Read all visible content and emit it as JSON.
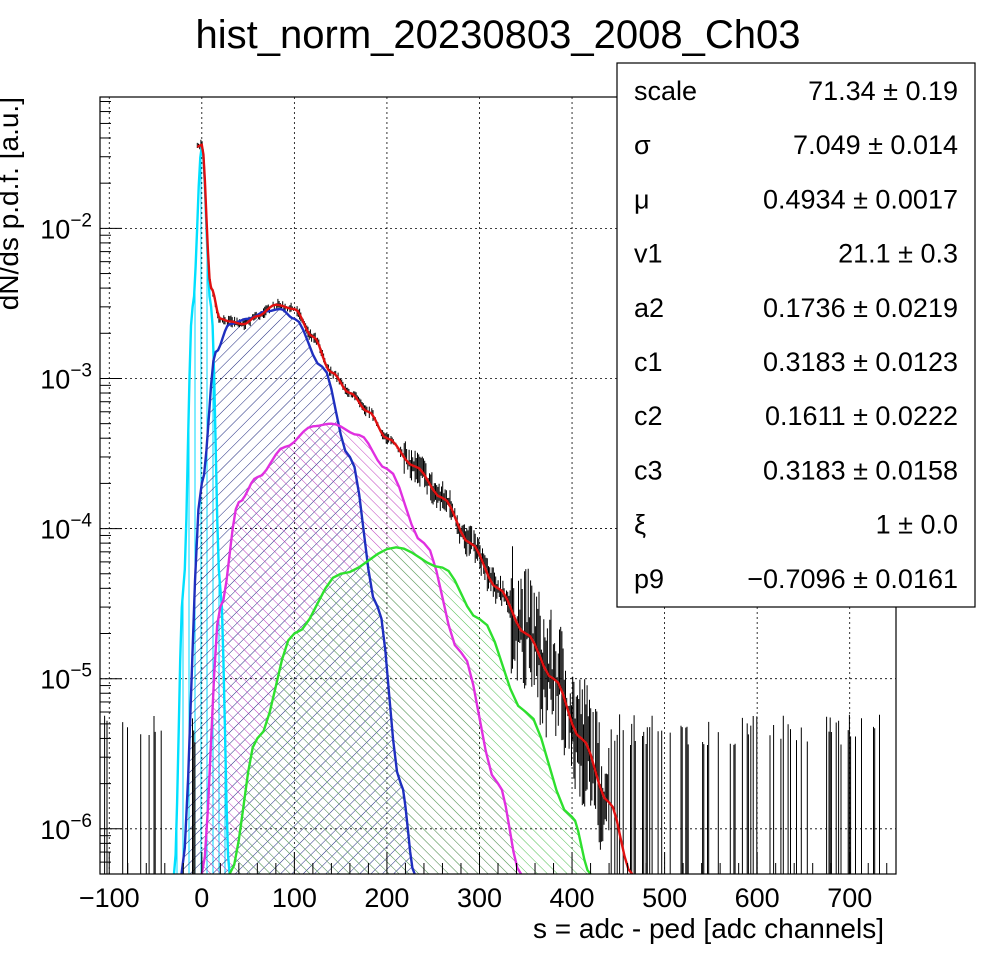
{
  "chart_data": {
    "type": "line",
    "title": "hist_norm_20230803_2008_Ch03",
    "xlabel": "s = adc - ped [adc channels]",
    "ylabel": "dN/ds p.d.f. [a.u.]",
    "xlim": [
      -110,
      750
    ],
    "ylim": [
      5e-07,
      0.075
    ],
    "log_y": true,
    "grid": true,
    "x_tick_labels": [
      "−100",
      "0",
      "100",
      "200",
      "300",
      "400",
      "500",
      "600",
      "700"
    ],
    "y_tick_labels": [
      {
        "base": "10",
        "exp": "−6"
      },
      {
        "base": "10",
        "exp": "−5"
      },
      {
        "base": "10",
        "exp": "−4"
      },
      {
        "base": "10",
        "exp": "−3"
      },
      {
        "base": "10",
        "exp": "−2"
      }
    ],
    "series": [
      {
        "color": "#00e0ff",
        "hatch": "vertical",
        "points": [
          [
            -30,
            5e-07
          ],
          [
            -20,
            4e-05
          ],
          [
            -10,
            0.003
          ],
          [
            0,
            0.035
          ],
          [
            10,
            0.003
          ],
          [
            20,
            4e-05
          ],
          [
            30,
            5e-07
          ]
        ]
      },
      {
        "color": "#1f2fbf",
        "hatch": "diagonal",
        "points": [
          [
            -22,
            5e-07
          ],
          [
            0,
            0.0002
          ],
          [
            15,
            0.0015
          ],
          [
            30,
            0.0023
          ],
          [
            50,
            0.0025
          ],
          [
            70,
            0.0028
          ],
          [
            85,
            0.0029
          ],
          [
            100,
            0.0025
          ],
          [
            130,
            0.0012
          ],
          [
            160,
            0.0003
          ],
          [
            190,
            3e-05
          ],
          [
            215,
            2e-06
          ],
          [
            230,
            5e-07
          ]
        ]
      },
      {
        "color": "#e030e0",
        "hatch": "diagonal",
        "points": [
          [
            0,
            5e-07
          ],
          [
            20,
            3e-05
          ],
          [
            40,
            0.00015
          ],
          [
            60,
            0.00022
          ],
          [
            90,
            0.00035
          ],
          [
            120,
            0.00048
          ],
          [
            140,
            0.0005
          ],
          [
            170,
            0.00042
          ],
          [
            200,
            0.00025
          ],
          [
            240,
            8e-05
          ],
          [
            280,
            1.5e-05
          ],
          [
            320,
            2e-06
          ],
          [
            345,
            5e-07
          ]
        ]
      },
      {
        "color": "#2ee02e",
        "hatch": "diagonal",
        "points": [
          [
            30,
            5e-07
          ],
          [
            60,
            4e-06
          ],
          [
            100,
            2e-05
          ],
          [
            150,
            5e-05
          ],
          [
            210,
            7.5e-05
          ],
          [
            260,
            5.5e-05
          ],
          [
            300,
            2.5e-05
          ],
          [
            350,
            6e-06
          ],
          [
            400,
            1.2e-06
          ],
          [
            420,
            5e-07
          ]
        ]
      },
      {
        "color": "#e01010",
        "points": [
          [
            -5,
            0.035
          ],
          [
            0,
            0.036
          ],
          [
            10,
            0.004
          ],
          [
            20,
            0.0025
          ],
          [
            30,
            0.0024
          ],
          [
            45,
            0.0023
          ],
          [
            60,
            0.0026
          ],
          [
            80,
            0.0031
          ],
          [
            100,
            0.0029
          ],
          [
            120,
            0.0019
          ],
          [
            140,
            0.0011
          ],
          [
            160,
            0.0008
          ],
          [
            180,
            0.0006
          ],
          [
            200,
            0.0004
          ],
          [
            230,
            0.00026
          ],
          [
            260,
            0.00016
          ],
          [
            290,
            8e-05
          ],
          [
            320,
            4e-05
          ],
          [
            350,
            2e-05
          ],
          [
            380,
            1e-05
          ],
          [
            410,
            4e-06
          ],
          [
            440,
            1.5e-06
          ],
          [
            465,
            5e-07
          ]
        ]
      }
    ],
    "stats": [
      {
        "name": "scale",
        "value": "71.34 ± 0.19"
      },
      {
        "name": "σ",
        "value": "7.049 ± 0.014"
      },
      {
        "name": "μ",
        "value": "0.4934 ± 0.0017"
      },
      {
        "name": "v1",
        "value": "21.1 ± 0.3"
      },
      {
        "name": "a2",
        "value": "0.1736 ± 0.0219"
      },
      {
        "name": "c1",
        "value": "0.3183 ± 0.0123"
      },
      {
        "name": "c2",
        "value": "0.1611 ± 0.0222"
      },
      {
        "name": "c3",
        "value": "0.3183 ± 0.0158"
      },
      {
        "name": "ξ",
        "value": "1 ± 0.0"
      },
      {
        "name": "p9",
        "value": "−0.7096 ± 0.0161"
      }
    ]
  }
}
